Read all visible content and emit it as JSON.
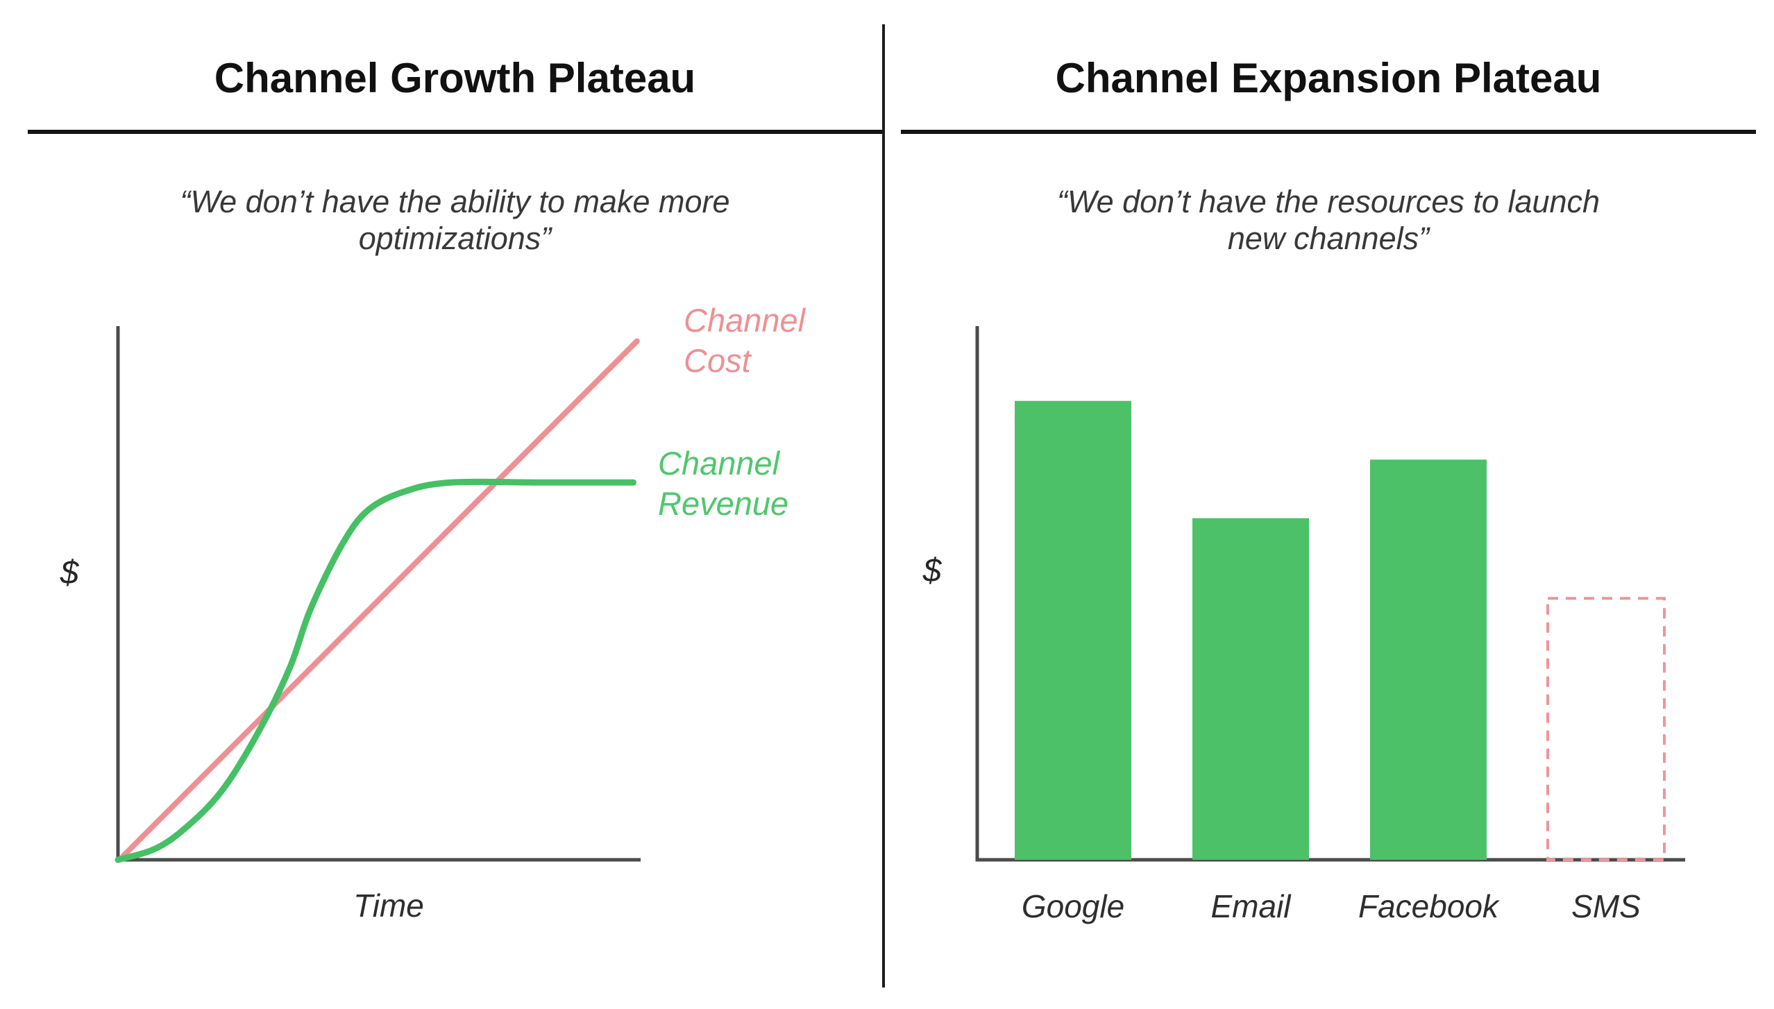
{
  "left_panel": {
    "title": "Channel Growth Plateau",
    "quote_lines": [
      "“We don’t have the ability to make more",
      "optimizations”"
    ],
    "ylabel": "$",
    "xlabel": "Time",
    "legend": {
      "cost": {
        "line1": "Channel",
        "line2": "Cost"
      },
      "revenue": {
        "line1": "Channel",
        "line2": "Revenue"
      }
    }
  },
  "right_panel": {
    "title": "Channel Expansion Plateau",
    "quote_lines": [
      "“We don’t have the resources to launch",
      "new channels”"
    ],
    "ylabel": "$",
    "categories": [
      "Google",
      "Email",
      "Facebook",
      "SMS"
    ]
  },
  "colors": {
    "cost_pink": "#EE9093",
    "dashed_pink": "#F09496",
    "revenue_green": "#45C065",
    "revenue_text_green": "#4FC76D",
    "bar_green": "#4CC167",
    "axis_gray": "#4B4B4B",
    "ink": "#141414"
  },
  "chart_data": [
    {
      "type": "line",
      "title": "Channel Growth Plateau",
      "annotation": "“We don’t have the ability to make more optimizations”",
      "xlabel": "Time",
      "ylabel": "$",
      "x_range": [
        0,
        1
      ],
      "y_range": [
        0,
        1
      ],
      "ticks": "none (conceptual sketch, unlabeled axes)",
      "legend_position": "right of line ends",
      "series": [
        {
          "name": "Channel Cost",
          "shape": "straight rising line",
          "color": "#EE9093",
          "points": [
            [
              0.01,
              0.007
            ],
            [
              0.997,
              0.972
            ]
          ]
        },
        {
          "name": "Channel Revenue",
          "shape": "s-curve rising then plateau",
          "color": "#45C065",
          "points": [
            [
              0.0,
              0.0
            ],
            [
              0.07,
              0.02
            ],
            [
              0.13,
              0.06
            ],
            [
              0.2,
              0.13
            ],
            [
              0.27,
              0.24
            ],
            [
              0.33,
              0.36
            ],
            [
              0.37,
              0.47
            ],
            [
              0.43,
              0.59
            ],
            [
              0.48,
              0.655
            ],
            [
              0.55,
              0.69
            ],
            [
              0.64,
              0.707
            ],
            [
              0.82,
              0.707
            ],
            [
              0.99,
              0.707
            ]
          ]
        }
      ]
    },
    {
      "type": "bar",
      "title": "Channel Expansion Plateau",
      "annotation": "“We don’t have the resources to launch new channels”",
      "ylabel": "$",
      "xlabel": "",
      "categories": [
        "Google",
        "Email",
        "Facebook",
        "SMS"
      ],
      "values": [
        0.86,
        0.64,
        0.75,
        0.49
      ],
      "bar_styles": [
        "solid",
        "solid",
        "solid",
        "dashed-outline"
      ],
      "ylim": [
        0,
        1
      ],
      "grid": false,
      "ticks": "none (conceptual sketch, unlabeled y axis)"
    }
  ]
}
